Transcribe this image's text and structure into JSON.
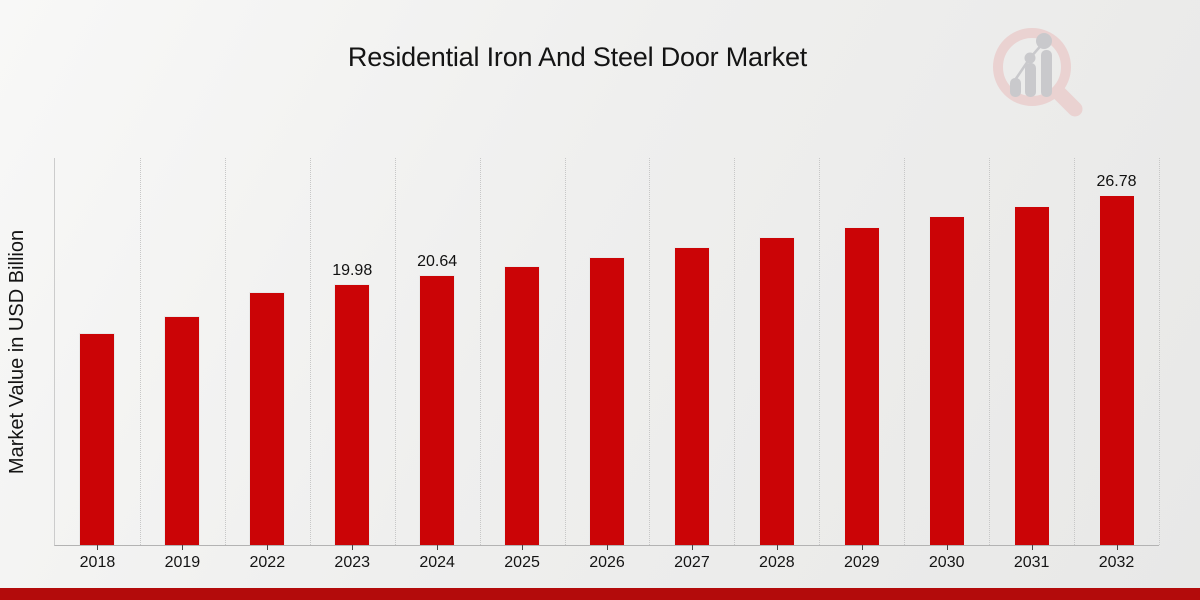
{
  "page": {
    "title": "Residential Iron And Steel Door Market",
    "y_axis_label": "Market Value in USD Billion",
    "logo_icon": "magnifier-bar-chart-logo",
    "accent_color": "#b30b0b",
    "bar_color": "#cb0406",
    "text_color": "#141414"
  },
  "chart_data": {
    "type": "bar",
    "title": "Residential Iron And Steel Door Market",
    "xlabel": "",
    "ylabel": "Market Value in USD Billion",
    "categories": [
      "2018",
      "2019",
      "2022",
      "2023",
      "2024",
      "2025",
      "2026",
      "2027",
      "2028",
      "2029",
      "2030",
      "2031",
      "2032"
    ],
    "values": [
      16.22,
      17.52,
      19.36,
      19.98,
      20.64,
      21.35,
      22.04,
      22.8,
      23.57,
      24.33,
      25.17,
      25.94,
      26.78
    ],
    "value_labels": [
      "",
      "",
      "",
      "19.98",
      "20.64",
      "",
      "",
      "",
      "",
      "",
      "",
      "",
      "26.78"
    ],
    "ylim": [
      0,
      29.6
    ],
    "bar_color": "#cb0406",
    "grid": "vertical-dotted",
    "legend": "none"
  }
}
